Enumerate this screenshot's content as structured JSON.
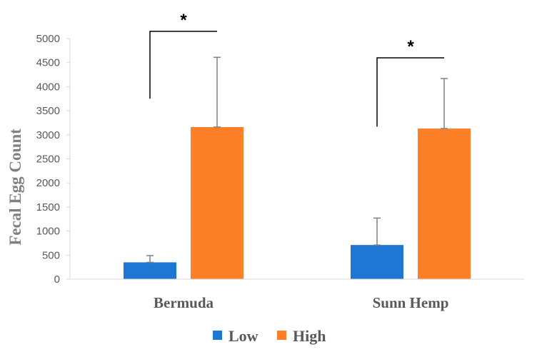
{
  "chart_data": {
    "type": "bar",
    "title": "",
    "xlabel": "",
    "ylabel": "Fecal Egg Count",
    "ylim": [
      0,
      5000
    ],
    "ytick_step": 500,
    "yticks": [
      "0",
      "500",
      "1000",
      "1500",
      "2000",
      "2500",
      "3000",
      "3500",
      "4000",
      "4500",
      "5000"
    ],
    "grid": false,
    "legend_position": "bottom",
    "categories": [
      "Bermuda",
      "Sunn Hemp"
    ],
    "series": [
      {
        "name": "Low",
        "color": "#1F77D4",
        "values": [
          350,
          710
        ],
        "error": [
          140,
          560
        ]
      },
      {
        "name": "High",
        "color": "#FD7F28",
        "values": [
          3160,
          3130
        ],
        "error": [
          1450,
          1040
        ]
      }
    ],
    "annotations": [
      {
        "text": "*",
        "category": "Bermuda",
        "bracket_y": 5150,
        "left_tip_y": 3750
      },
      {
        "text": "*",
        "category": "Sunn Hemp",
        "bracket_y": 4600,
        "left_tip_y": 3170
      }
    ]
  }
}
